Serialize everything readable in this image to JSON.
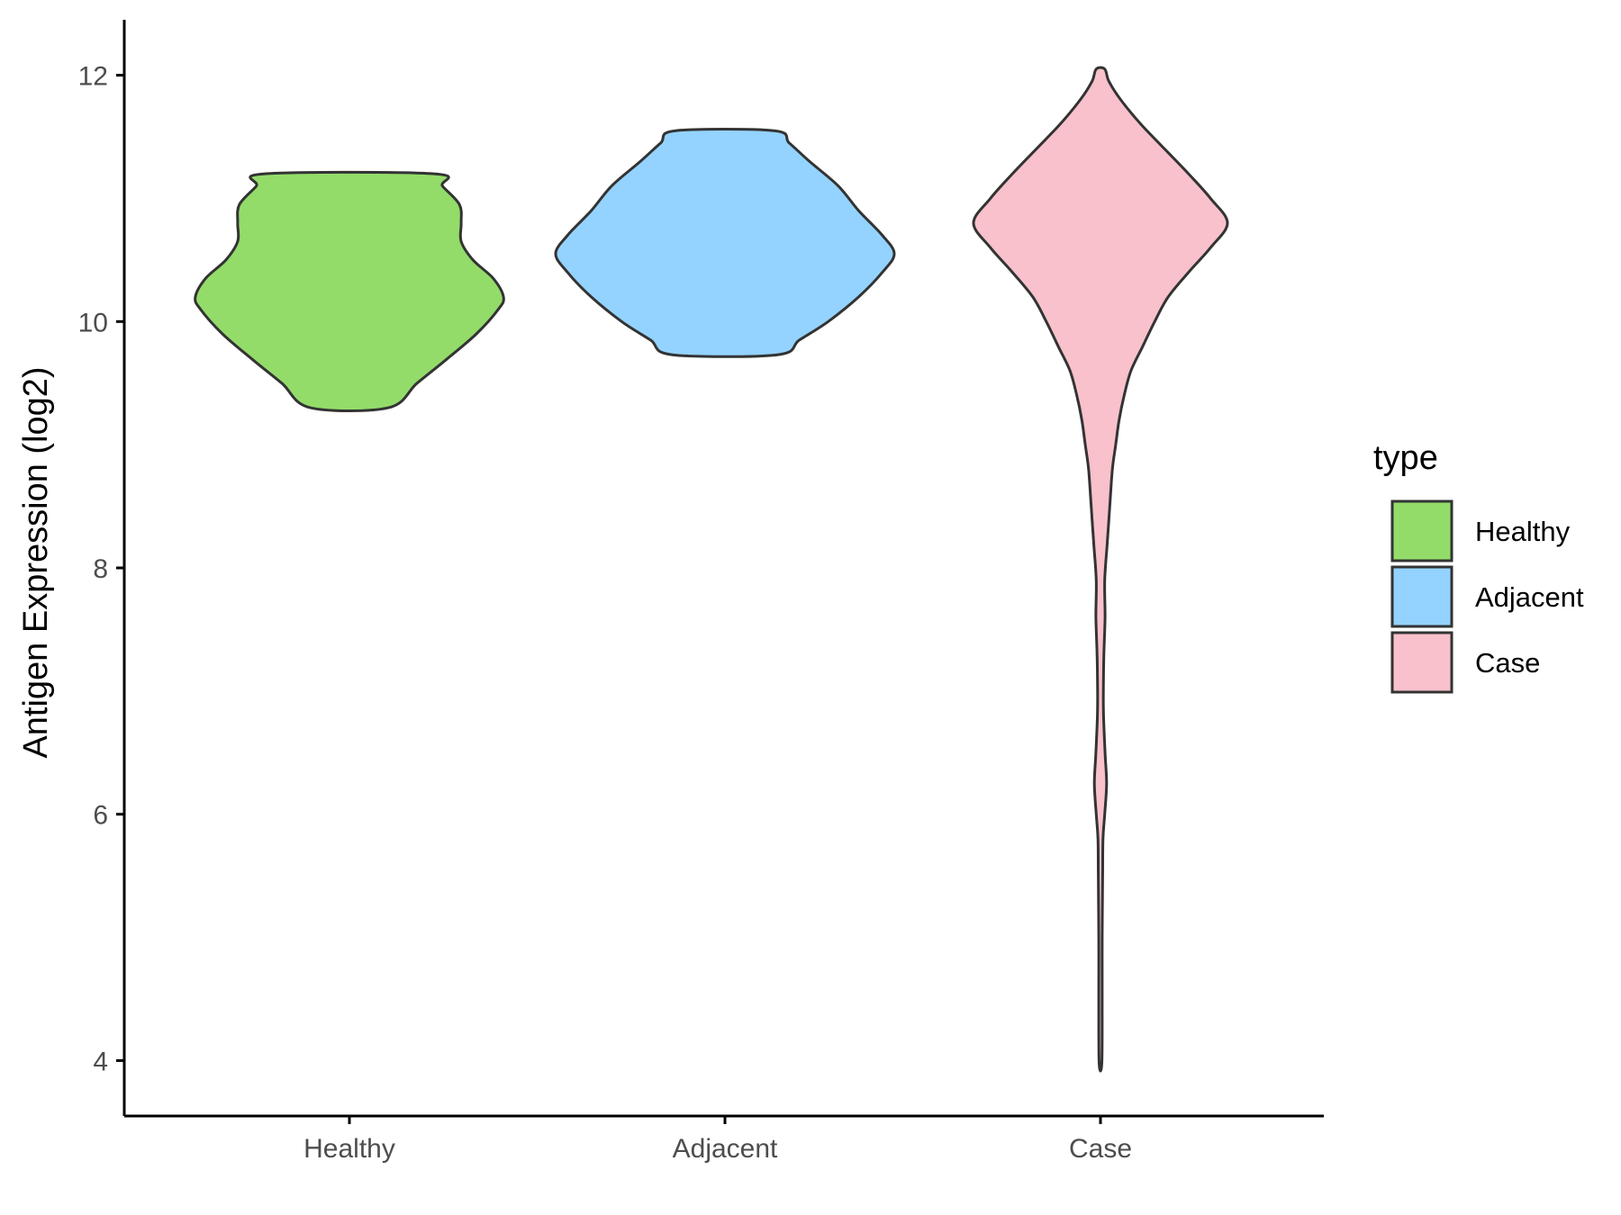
{
  "chart_data": {
    "type": "violin",
    "title": "",
    "xlabel": "",
    "ylabel": "Antigen Expression (log2)",
    "ylim": [
      3.55,
      12.45
    ],
    "yticks": [
      4,
      6,
      8,
      10,
      12
    ],
    "categories": [
      "Healthy",
      "Adjacent",
      "Case"
    ],
    "grid": false,
    "legend": {
      "title": "type",
      "position": "right",
      "entries": [
        "Healthy",
        "Adjacent",
        "Case"
      ]
    },
    "colors": {
      "Healthy": "#93dc6a",
      "Adjacent": "#94d3ff",
      "Case": "#f8c1cb",
      "outline": "#333333",
      "axis": "#000000"
    },
    "series": [
      {
        "category": "Healthy",
        "min": 9.3,
        "max": 11.2,
        "density_profile": [
          [
            9.3,
            0.23
          ],
          [
            9.5,
            0.4
          ],
          [
            9.7,
            0.58
          ],
          [
            9.9,
            0.75
          ],
          [
            10.1,
            0.88
          ],
          [
            10.2,
            0.91
          ],
          [
            10.35,
            0.85
          ],
          [
            10.5,
            0.73
          ],
          [
            10.65,
            0.66
          ],
          [
            10.8,
            0.66
          ],
          [
            10.95,
            0.65
          ],
          [
            11.1,
            0.55
          ],
          [
            11.2,
            0.5
          ]
        ]
      },
      {
        "category": "Adjacent",
        "min": 9.73,
        "max": 11.55,
        "density_profile": [
          [
            9.73,
            0.31
          ],
          [
            9.85,
            0.44
          ],
          [
            10.0,
            0.61
          ],
          [
            10.2,
            0.79
          ],
          [
            10.4,
            0.93
          ],
          [
            10.55,
            1.0
          ],
          [
            10.7,
            0.93
          ],
          [
            10.9,
            0.79
          ],
          [
            11.1,
            0.67
          ],
          [
            11.3,
            0.5
          ],
          [
            11.45,
            0.38
          ],
          [
            11.55,
            0.29
          ]
        ]
      },
      {
        "category": "Case",
        "min": 3.98,
        "max": 12.05,
        "density_profile": [
          [
            3.98,
            0.008
          ],
          [
            4.5,
            0.01
          ],
          [
            5.0,
            0.01
          ],
          [
            5.5,
            0.013
          ],
          [
            5.8,
            0.015
          ],
          [
            6.0,
            0.025
          ],
          [
            6.25,
            0.036
          ],
          [
            6.5,
            0.027
          ],
          [
            6.8,
            0.018
          ],
          [
            7.0,
            0.017
          ],
          [
            7.3,
            0.02
          ],
          [
            7.6,
            0.027
          ],
          [
            7.9,
            0.025
          ],
          [
            8.2,
            0.04
          ],
          [
            8.5,
            0.055
          ],
          [
            8.8,
            0.07
          ],
          [
            9.0,
            0.09
          ],
          [
            9.2,
            0.11
          ],
          [
            9.4,
            0.14
          ],
          [
            9.6,
            0.18
          ],
          [
            9.8,
            0.25
          ],
          [
            10.0,
            0.32
          ],
          [
            10.2,
            0.4
          ],
          [
            10.4,
            0.52
          ],
          [
            10.6,
            0.65
          ],
          [
            10.8,
            0.75
          ],
          [
            11.0,
            0.65
          ],
          [
            11.2,
            0.52
          ],
          [
            11.4,
            0.38
          ],
          [
            11.6,
            0.24
          ],
          [
            11.8,
            0.12
          ],
          [
            11.95,
            0.05
          ],
          [
            12.05,
            0.025
          ]
        ]
      }
    ]
  }
}
